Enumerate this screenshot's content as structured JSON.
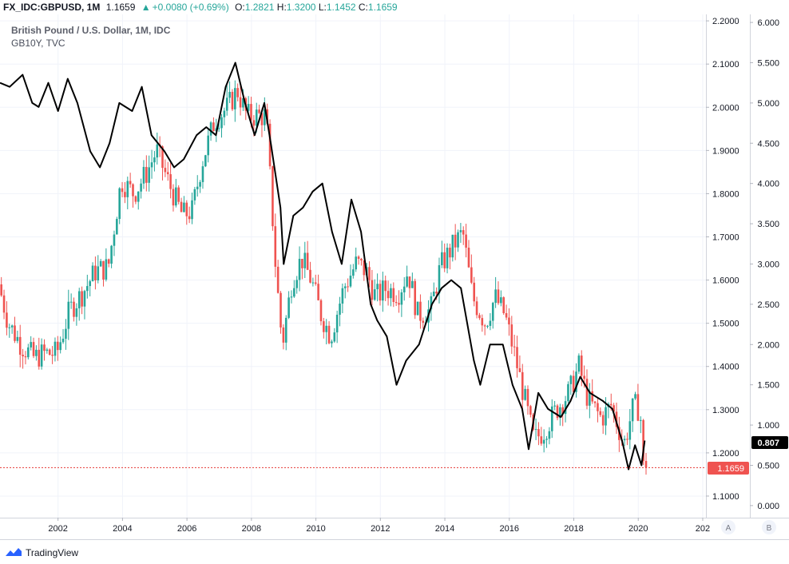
{
  "header": {
    "symbol": "FX_IDC:GBPUSD, 1M",
    "last": "1.1659",
    "change_arrow": "▲",
    "change": "+0.0080 (+0.69%)",
    "o_label": "O:",
    "o_value": "1.2821",
    "h_label": "H:",
    "h_value": "1.3200",
    "l_label": "L:",
    "l_value": "1.1452",
    "c_label": "C:",
    "c_value": "1.1659"
  },
  "legend": {
    "main": "British Pound / U.S. Dollar, 1M, IDC",
    "overlay": "GB10Y, TVC"
  },
  "footer": {
    "brand": "TradingView",
    "logo_icon": "tradingview-logo-icon"
  },
  "scale_buttons": [
    "A",
    "B"
  ],
  "chart_data": {
    "type": "line",
    "title": "British Pound / U.S. Dollar, 1M, IDC",
    "x_ticks": [
      "2002",
      "2004",
      "2006",
      "2008",
      "2010",
      "2012",
      "2014",
      "2016",
      "2018",
      "2020",
      "202"
    ],
    "xlim": [
      2000.2,
      2022.1
    ],
    "left_axis": {
      "ticks": [
        "2.2000",
        "2.1000",
        "2.0000",
        "1.9000",
        "1.8000",
        "1.7000",
        "1.6000",
        "1.5000",
        "1.4000",
        "1.3000",
        "1.2000",
        "1.1000"
      ],
      "ylim": [
        1.05,
        2.215
      ]
    },
    "right_axis": {
      "ticks": [
        "6.000",
        "5.500",
        "5.000",
        "4.500",
        "4.000",
        "3.500",
        "3.000",
        "2.500",
        "2.000",
        "1.500",
        "1.000",
        "0.500",
        "0.000"
      ],
      "ylim": [
        -0.15,
        6.1
      ]
    },
    "last_price_label": "1.1659",
    "last_yield_label": "0.807",
    "colors": {
      "up": "#26a69a",
      "down": "#ef5350",
      "yield_line": "#000000",
      "price_line": "#e53935",
      "grid": "#f0f3fa"
    },
    "series": [
      {
        "name": "British Pound / U.S. Dollar, 1M, IDC",
        "axis": "left",
        "points": [
          [
            2000.2,
            1.59
          ],
          [
            2000.5,
            1.5
          ],
          [
            2000.9,
            1.45
          ],
          [
            2001.3,
            1.42
          ],
          [
            2001.6,
            1.43
          ],
          [
            2002.0,
            1.43
          ],
          [
            2002.4,
            1.53
          ],
          [
            2002.8,
            1.57
          ],
          [
            2003.2,
            1.62
          ],
          [
            2003.6,
            1.63
          ],
          [
            2004.0,
            1.83
          ],
          [
            2004.4,
            1.8
          ],
          [
            2004.8,
            1.85
          ],
          [
            2005.1,
            1.9
          ],
          [
            2005.5,
            1.82
          ],
          [
            2005.9,
            1.75
          ],
          [
            2006.2,
            1.76
          ],
          [
            2006.5,
            1.87
          ],
          [
            2006.9,
            1.97
          ],
          [
            2007.3,
            2.0
          ],
          [
            2007.6,
            2.04
          ],
          [
            2007.9,
            1.98
          ],
          [
            2008.2,
            1.98
          ],
          [
            2008.5,
            1.98
          ],
          [
            2008.8,
            1.62
          ],
          [
            2009.0,
            1.45
          ],
          [
            2009.3,
            1.6
          ],
          [
            2009.6,
            1.65
          ],
          [
            2009.9,
            1.6
          ],
          [
            2010.2,
            1.52
          ],
          [
            2010.5,
            1.47
          ],
          [
            2010.9,
            1.58
          ],
          [
            2011.3,
            1.64
          ],
          [
            2011.6,
            1.62
          ],
          [
            2011.9,
            1.56
          ],
          [
            2012.2,
            1.58
          ],
          [
            2012.6,
            1.57
          ],
          [
            2012.9,
            1.62
          ],
          [
            2013.2,
            1.52
          ],
          [
            2013.6,
            1.53
          ],
          [
            2013.9,
            1.63
          ],
          [
            2014.3,
            1.68
          ],
          [
            2014.6,
            1.71
          ],
          [
            2014.9,
            1.56
          ],
          [
            2015.3,
            1.5
          ],
          [
            2015.6,
            1.56
          ],
          [
            2015.9,
            1.52
          ],
          [
            2016.2,
            1.43
          ],
          [
            2016.5,
            1.33
          ],
          [
            2016.8,
            1.23
          ],
          [
            2017.1,
            1.25
          ],
          [
            2017.5,
            1.3
          ],
          [
            2017.9,
            1.34
          ],
          [
            2018.2,
            1.4
          ],
          [
            2018.5,
            1.32
          ],
          [
            2018.9,
            1.28
          ],
          [
            2019.2,
            1.31
          ],
          [
            2019.6,
            1.22
          ],
          [
            2019.9,
            1.31
          ],
          [
            2020.1,
            1.3
          ],
          [
            2020.2,
            1.1659
          ]
        ]
      },
      {
        "name": "GB10Y, TVC",
        "axis": "right",
        "points": [
          [
            2000.2,
            5.25
          ],
          [
            2000.5,
            5.2
          ],
          [
            2000.9,
            5.35
          ],
          [
            2001.2,
            5.0
          ],
          [
            2001.4,
            4.95
          ],
          [
            2001.7,
            5.25
          ],
          [
            2002.0,
            4.9
          ],
          [
            2002.3,
            5.3
          ],
          [
            2002.6,
            5.0
          ],
          [
            2003.0,
            4.4
          ],
          [
            2003.3,
            4.2
          ],
          [
            2003.6,
            4.5
          ],
          [
            2003.9,
            5.0
          ],
          [
            2004.3,
            4.9
          ],
          [
            2004.6,
            5.2
          ],
          [
            2004.9,
            4.6
          ],
          [
            2005.3,
            4.4
          ],
          [
            2005.6,
            4.2
          ],
          [
            2005.9,
            4.3
          ],
          [
            2006.3,
            4.6
          ],
          [
            2006.6,
            4.7
          ],
          [
            2006.9,
            4.6
          ],
          [
            2007.2,
            5.2
          ],
          [
            2007.5,
            5.5
          ],
          [
            2007.8,
            5.0
          ],
          [
            2008.1,
            4.6
          ],
          [
            2008.4,
            5.0
          ],
          [
            2008.6,
            4.5
          ],
          [
            2008.9,
            3.7
          ],
          [
            2009.0,
            3.0
          ],
          [
            2009.3,
            3.6
          ],
          [
            2009.6,
            3.7
          ],
          [
            2009.9,
            3.9
          ],
          [
            2010.2,
            4.0
          ],
          [
            2010.5,
            3.4
          ],
          [
            2010.8,
            3.0
          ],
          [
            2011.1,
            3.8
          ],
          [
            2011.4,
            3.4
          ],
          [
            2011.7,
            2.5
          ],
          [
            2011.9,
            2.3
          ],
          [
            2012.2,
            2.1
          ],
          [
            2012.5,
            1.5
          ],
          [
            2012.8,
            1.8
          ],
          [
            2013.2,
            2.0
          ],
          [
            2013.6,
            2.5
          ],
          [
            2013.9,
            2.7
          ],
          [
            2014.2,
            2.8
          ],
          [
            2014.5,
            2.7
          ],
          [
            2014.9,
            1.8
          ],
          [
            2015.1,
            1.5
          ],
          [
            2015.4,
            2.0
          ],
          [
            2015.8,
            2.0
          ],
          [
            2016.1,
            1.5
          ],
          [
            2016.4,
            1.2
          ],
          [
            2016.6,
            0.7
          ],
          [
            2016.9,
            1.4
          ],
          [
            2017.2,
            1.2
          ],
          [
            2017.6,
            1.1
          ],
          [
            2017.9,
            1.3
          ],
          [
            2018.2,
            1.6
          ],
          [
            2018.5,
            1.4
          ],
          [
            2018.9,
            1.3
          ],
          [
            2019.2,
            1.2
          ],
          [
            2019.5,
            0.8
          ],
          [
            2019.7,
            0.45
          ],
          [
            2019.9,
            0.75
          ],
          [
            2020.1,
            0.5
          ],
          [
            2020.2,
            0.807
          ]
        ]
      }
    ]
  }
}
